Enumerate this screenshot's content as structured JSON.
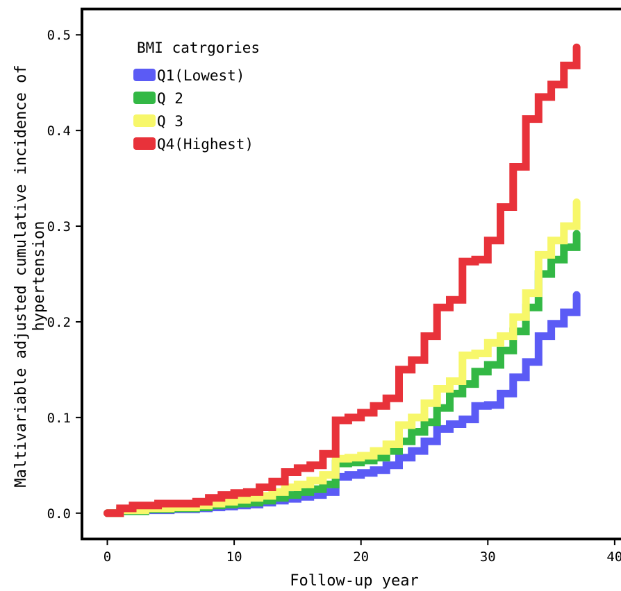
{
  "chart_data": {
    "type": "line",
    "step": true,
    "title": "",
    "xlabel": "Follow-up year",
    "ylabel_lines": [
      "Maltivariable adjusted cumulative incidence of",
      "hypertension"
    ],
    "xlim": [
      -2,
      40.5
    ],
    "ylim": [
      -0.027,
      0.527
    ],
    "x_ticks": [
      0,
      10,
      20,
      30,
      40
    ],
    "x_tick_labels": [
      "0",
      "10",
      "20",
      "30",
      "40"
    ],
    "y_ticks": [
      0.0,
      0.1,
      0.2,
      0.3,
      0.4,
      0.5
    ],
    "y_tick_labels": [
      "0.0",
      "0.1",
      "0.2",
      "0.3",
      "0.4",
      "0.5"
    ],
    "grid": false,
    "legend": {
      "title": "BMI catrgories",
      "position": "top-left"
    },
    "series": [
      {
        "name": "Q1(Lowest)",
        "color": "#5b5bf5",
        "x": [
          0,
          1,
          3,
          5,
          7,
          8,
          9,
          10,
          11,
          12,
          13,
          14,
          15,
          16,
          17,
          18,
          19,
          20,
          21,
          22,
          23,
          24,
          25,
          26,
          27,
          28,
          29,
          30,
          31,
          32,
          33,
          34,
          35,
          36,
          37
        ],
        "y": [
          0,
          0.002,
          0.003,
          0.004,
          0.005,
          0.006,
          0.007,
          0.008,
          0.009,
          0.011,
          0.013,
          0.015,
          0.017,
          0.019,
          0.022,
          0.038,
          0.04,
          0.042,
          0.045,
          0.05,
          0.058,
          0.065,
          0.075,
          0.088,
          0.093,
          0.098,
          0.112,
          0.113,
          0.125,
          0.142,
          0.158,
          0.185,
          0.198,
          0.21,
          0.228
        ]
      },
      {
        "name": "Q 2",
        "color": "#33b845",
        "x": [
          0,
          1,
          3,
          5,
          7,
          8,
          9,
          10,
          11,
          12,
          13,
          14,
          15,
          16,
          17,
          18,
          19,
          20,
          21,
          22,
          23,
          24,
          25,
          26,
          27,
          28,
          29,
          30,
          31,
          32,
          33,
          34,
          35,
          36,
          37
        ],
        "y": [
          0,
          0.002,
          0.004,
          0.005,
          0.006,
          0.008,
          0.009,
          0.01,
          0.011,
          0.013,
          0.016,
          0.019,
          0.022,
          0.025,
          0.03,
          0.052,
          0.053,
          0.055,
          0.058,
          0.065,
          0.075,
          0.085,
          0.095,
          0.11,
          0.125,
          0.135,
          0.148,
          0.155,
          0.17,
          0.19,
          0.215,
          0.25,
          0.265,
          0.278,
          0.292
        ]
      },
      {
        "name": "Q 3",
        "color": "#f7f76a",
        "x": [
          0,
          1,
          3,
          5,
          7,
          8,
          9,
          10,
          11,
          12,
          13,
          14,
          15,
          16,
          17,
          18,
          19,
          20,
          21,
          22,
          23,
          24,
          25,
          26,
          27,
          28,
          29,
          30,
          31,
          32,
          33,
          34,
          35,
          36,
          37
        ],
        "y": [
          0,
          0.003,
          0.005,
          0.006,
          0.008,
          0.01,
          0.012,
          0.014,
          0.016,
          0.018,
          0.022,
          0.027,
          0.03,
          0.034,
          0.04,
          0.057,
          0.058,
          0.06,
          0.065,
          0.072,
          0.092,
          0.1,
          0.115,
          0.13,
          0.138,
          0.165,
          0.167,
          0.178,
          0.185,
          0.205,
          0.23,
          0.27,
          0.285,
          0.3,
          0.325
        ]
      },
      {
        "name": "Q4(Highest)",
        "color": "#e8323a",
        "x": [
          0,
          1,
          2,
          4,
          7,
          8,
          9,
          10,
          11,
          12,
          13,
          14,
          15,
          16,
          17,
          18,
          19,
          20,
          21,
          22,
          23,
          24,
          25,
          26,
          27,
          28,
          29,
          30,
          31,
          32,
          33,
          34,
          35,
          36,
          37
        ],
        "y": [
          0,
          0.005,
          0.008,
          0.01,
          0.012,
          0.016,
          0.019,
          0.021,
          0.022,
          0.027,
          0.033,
          0.043,
          0.047,
          0.05,
          0.062,
          0.097,
          0.1,
          0.105,
          0.112,
          0.12,
          0.15,
          0.16,
          0.185,
          0.215,
          0.223,
          0.263,
          0.265,
          0.285,
          0.32,
          0.362,
          0.412,
          0.435,
          0.448,
          0.468,
          0.487
        ]
      }
    ]
  }
}
